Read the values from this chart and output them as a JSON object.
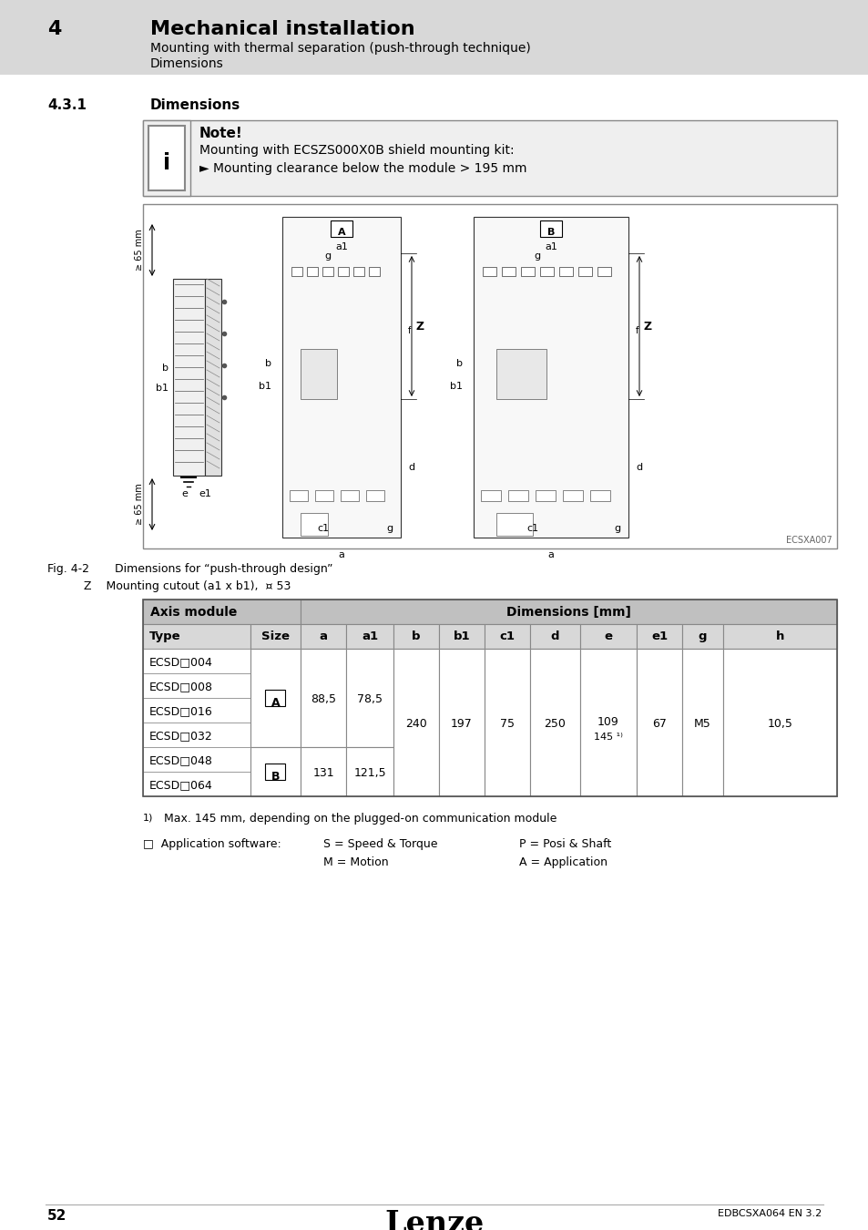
{
  "header_number": "4",
  "header_title": "Mechanical installation",
  "header_sub1": "Mounting with thermal separation (push-through technique)",
  "header_sub2": "Dimensions",
  "header_bg": "#d8d8d8",
  "section_number": "4.3.1",
  "section_title": "Dimensions",
  "note_title": "Note!",
  "note_line1": "Mounting with ECSZS000X0B shield mounting kit:",
  "note_line2": "► Mounting clearance below the module > 195 mm",
  "fig_caption1": "Fig. 4-2       Dimensions for “push-through design”",
  "fig_caption2": "          Z    Mounting cutout (a1 x b1),  ¤ 53",
  "fig_label": "ECSXA007",
  "table_header_left": "Axis module",
  "table_header_right": "Dimensions [mm]",
  "table_col_headers": [
    "Type",
    "Size",
    "a",
    "a1",
    "b",
    "b1",
    "c1",
    "d",
    "e",
    "e1",
    "g",
    "h"
  ],
  "footnote_num": "1)",
  "footnote_text": "Max. 145 mm, depending on the plugged-on communication module",
  "appsw_label": "□  Application software:",
  "appsw_s": "S = Speed & Torque",
  "appsw_p": "P = Posi & Shaft",
  "appsw_m": "M = Motion",
  "appsw_a": "A = Application",
  "footer_page": "52",
  "footer_logo": "Lenze",
  "footer_doc": "EDBCSXA064 EN 3.2",
  "bg_white": "#ffffff",
  "header_bg2": "#e8e8e8",
  "table_header_bg": "#c0c0c0",
  "table_subheader_bg": "#d8d8d8",
  "note_bg": "#efefef",
  "border_color": "#888888",
  "dark_border": "#333333"
}
